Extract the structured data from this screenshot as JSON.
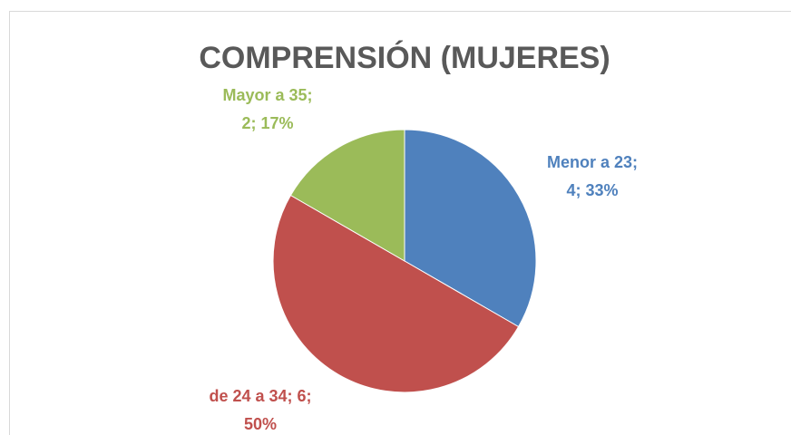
{
  "chart_data": {
    "type": "pie",
    "title": "COMPRENSIÓN (MUJERES)",
    "categories": [
      "Menor a 23",
      "de 24 a 34",
      "Mayor a 35"
    ],
    "values": [
      4,
      6,
      2
    ],
    "value_labels": [
      [
        "Menor a 23;",
        "4; 33%"
      ],
      [
        "de 24 a 34; 6;",
        "50%"
      ],
      [
        "Mayor a 35;",
        "2; 17%"
      ]
    ],
    "colors": [
      "#4f81bd",
      "#c0504d",
      "#9bbb59"
    ]
  }
}
